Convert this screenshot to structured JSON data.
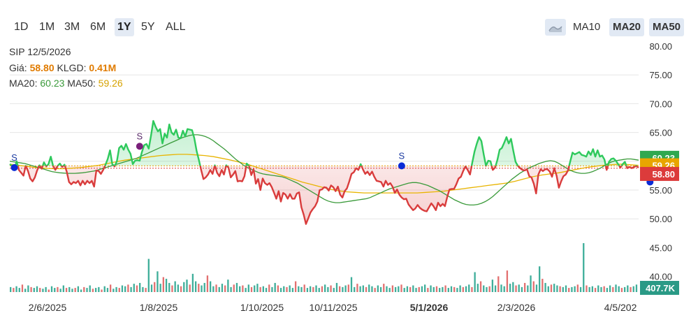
{
  "toolbar": {
    "ranges": [
      "1D",
      "1M",
      "3M",
      "6M",
      "1Y",
      "5Y",
      "ALL"
    ],
    "active_range": "1Y",
    "chart_type_icon": "area-chart-icon",
    "ma_buttons": [
      "MA10",
      "MA20",
      "MA50"
    ],
    "active_ma": [
      "MA20",
      "MA50"
    ]
  },
  "info": {
    "symbol_date": "SIP 12/5/2026",
    "price_label": "Giá:",
    "price_value": "58.80",
    "volume_label": "KLGD:",
    "volume_value": "0.41M",
    "ma20_label": "MA20:",
    "ma20_value": "60.23",
    "ma50_label": "MA50:",
    "ma50_value": "59.26"
  },
  "colors": {
    "up": "#2ec95c",
    "down": "#d93c3c",
    "ma20": "#3a9a3a",
    "ma50": "#e8b400",
    "signal": "#0a2bd6",
    "signal_alt": "#7a1f7a",
    "vol_teal": "#2aa58f",
    "vol_red": "#e06060"
  },
  "chart_data": {
    "type": "line",
    "title": "",
    "x_tick_labels": [
      "2/6/2025",
      "1/8/2025",
      "1/10/2025",
      "10/11/2025",
      "5/1/2026",
      "2/3/2026",
      "4/5/202"
    ],
    "bold_x_tick": "5/1/2026",
    "y_tick_labels": [
      "80.00",
      "75.00",
      "70.00",
      "65.00",
      "60.00",
      "55.00",
      "50.00",
      "45.00",
      "40.00"
    ],
    "ylim": [
      38,
      81
    ],
    "reference_price": 59.2,
    "last_labels": {
      "ma20": "60.23",
      "ma50": "59.26",
      "price": "58.80",
      "volume": "407.7K"
    },
    "price": [
      59.5,
      59.2,
      58.6,
      60.0,
      58.5,
      58.0,
      57.5,
      59.2,
      58.3,
      57.0,
      56.5,
      57.2,
      58.4,
      59.3,
      58.7,
      59.8,
      59.1,
      59.5,
      60.8,
      59.2,
      58.5,
      59.2,
      59.6,
      59.0,
      59.4,
      58.2,
      56.4,
      56.0,
      56.4,
      56.2,
      56.6,
      55.8,
      56.6,
      56.0,
      56.6,
      56.2,
      56.6,
      55.6,
      58.4,
      58.3,
      57.8,
      58.5,
      59.4,
      60.4,
      61.9,
      59.5,
      59.1,
      60.0,
      62.3,
      62.7,
      62.0,
      63.0,
      62.0,
      61.3,
      59.5,
      60.1,
      60.2,
      60.1,
      61.6,
      62.8,
      63.0,
      62.2,
      64.5,
      67.0,
      66.0,
      65.2,
      65.6,
      63.1,
      64.8,
      64.1,
      66.4,
      65.0,
      64.6,
      65.5,
      64.1,
      64.0,
      65.3,
      64.3,
      65.6,
      65.5,
      65.4,
      64.0,
      61.8,
      60.2,
      58.5,
      56.9,
      57.2,
      57.7,
      58.5,
      57.8,
      59.3,
      58.0,
      57.4,
      58.5,
      57.7,
      59.3,
      58.9,
      57.2,
      57.7,
      58.3,
      56.5,
      56.6,
      56.5,
      57.4,
      59.6,
      59.2,
      57.6,
      58.6,
      56.1,
      56.9,
      55.0,
      57.0,
      56.2,
      55.9,
      56.2,
      55.5,
      54.5,
      53.5,
      54.8,
      53.0,
      54.5,
      54.2,
      53.5,
      54.3,
      53.5,
      53.5,
      54.4,
      54.6,
      52.0,
      50.7,
      49.1,
      50.1,
      51.1,
      51.7,
      52.2,
      53.0,
      55.0,
      55.1,
      55.5,
      55.4,
      54.9,
      55.8,
      55.5,
      54.8,
      55.6,
      54.2,
      53.7,
      54.8,
      55.3,
      56.5,
      57.8,
      58.1,
      58.8,
      58.5,
      59.5,
      58.6,
      57.8,
      58.2,
      57.6,
      58.2,
      57.3,
      56.6,
      56.5,
      56.4,
      55.6,
      56.6,
      55.9,
      56.2,
      55.6,
      54.5,
      55.1,
      54.2,
      53.7,
      53.4,
      53.5,
      52.5,
      52.0,
      51.5,
      51.8,
      52.4,
      51.9,
      51.6,
      51.4,
      51.3,
      52.0,
      52.7,
      52.2,
      51.5,
      52.8,
      52.2,
      52.6,
      52.2,
      53.8,
      55.1,
      55.2,
      55.2,
      56.0,
      57.0,
      57.3,
      58.3,
      59.1,
      58.5,
      57.7,
      59.8,
      61.7,
      63.1,
      64.2,
      63.5,
      61.2,
      59.2,
      60.1,
      60.0,
      58.5,
      58.9,
      60.2,
      62.0,
      62.3,
      63.2,
      64.2,
      63.1,
      63.9,
      61.8,
      59.9,
      59.2,
      58.8,
      58.5,
      58.4,
      58.6,
      57.4,
      57.2,
      56.1,
      54.4,
      57.7,
      58.6,
      58.3,
      58.6,
      58.6,
      58.2,
      57.3,
      58.8,
      57.5,
      55.4,
      56.5,
      57.4,
      57.7,
      58.4,
      60.0,
      61.5,
      61.2,
      61.4,
      61.6,
      61.1,
      61.0,
      60.8,
      61.7,
      61.1,
      62.1,
      60.8,
      61.9,
      60.8,
      61.0,
      60.3,
      58.5,
      59.9,
      60.4,
      60.5,
      60.1,
      59.5,
      58.9,
      59.5,
      59.9,
      58.8,
      59.0,
      58.8,
      59.0,
      59.2,
      58.9
    ],
    "ma20": [
      60.0,
      59.9,
      59.8,
      59.7,
      59.6,
      59.4,
      59.2,
      59.0,
      58.8,
      58.6,
      58.4,
      58.2,
      58.1,
      58.0,
      57.95,
      57.9,
      57.9,
      57.9,
      57.95,
      58.0,
      58.1,
      58.2,
      58.3,
      58.5,
      58.7,
      58.9,
      59.1,
      59.3,
      59.5,
      59.7,
      59.9,
      60.1,
      60.3,
      60.5,
      60.8,
      61.1,
      61.4,
      61.7,
      62.0,
      62.3,
      62.6,
      62.9,
      63.2,
      63.5,
      63.8,
      64.1,
      64.3,
      64.5,
      64.6,
      64.6,
      64.5,
      64.3,
      64.0,
      63.6,
      63.1,
      62.6,
      62.1,
      61.5,
      60.9,
      60.3,
      59.8,
      59.3,
      58.9,
      58.6,
      58.3,
      58.0,
      57.8,
      57.7,
      57.6,
      57.5,
      57.4,
      57.3,
      57.1,
      56.8,
      56.5,
      56.2,
      55.8,
      55.4,
      55.0,
      54.6,
      54.2,
      53.8,
      53.4,
      53.1,
      52.9,
      52.8,
      52.8,
      52.9,
      53.0,
      53.1,
      53.2,
      53.3,
      53.4,
      53.5,
      53.7,
      54.0,
      54.3,
      54.6,
      54.9,
      55.2,
      55.4,
      55.6,
      55.8,
      56.0,
      56.2,
      56.3,
      56.3,
      56.2,
      56.0,
      55.8,
      55.5,
      55.2,
      54.9,
      54.5,
      54.1,
      53.7,
      53.3,
      53.0,
      52.7,
      52.5,
      52.4,
      52.4,
      52.5,
      52.7,
      53.0,
      53.4,
      53.9,
      54.5,
      55.1,
      55.7,
      56.3,
      56.9,
      57.4,
      57.9,
      58.3,
      58.7,
      59.0,
      59.3,
      59.6,
      59.8,
      60.0,
      60.1,
      60.0,
      59.7,
      59.3,
      58.9,
      58.5,
      58.2,
      58.0,
      57.9,
      57.9,
      58.0,
      58.2,
      58.5,
      58.8,
      59.2,
      59.6,
      59.9,
      60.1,
      60.2,
      60.3,
      60.4,
      60.4,
      60.3,
      60.2
    ],
    "ma50": [
      59.5,
      59.3,
      59.1,
      58.9,
      58.8,
      58.7,
      58.7,
      58.8,
      58.9,
      59.1,
      59.3,
      59.6,
      59.9,
      60.2,
      60.4,
      60.6,
      60.8,
      61.0,
      61.1,
      61.2,
      61.2,
      61.1,
      61.0,
      60.8,
      60.5,
      60.2,
      59.8,
      59.4,
      58.9,
      58.4,
      57.9,
      57.4,
      56.9,
      56.4,
      56.0,
      55.6,
      55.2,
      54.9,
      54.7,
      54.6,
      54.5,
      54.5,
      54.5,
      54.5,
      54.5,
      54.5,
      54.5,
      54.6,
      54.7,
      54.8,
      55.0,
      55.2,
      55.4,
      55.6,
      55.8,
      56.0,
      56.2,
      56.5,
      56.9,
      57.3,
      57.6,
      57.8,
      58.0,
      58.3,
      58.6,
      58.9,
      59.1,
      59.3,
      59.4,
      59.5,
      59.4,
      59.3
    ],
    "volume": [
      0.6,
      0.5,
      0.7,
      0.5,
      0.9,
      0.4,
      0.8,
      0.6,
      0.5,
      0.7,
      0.5,
      0.4,
      0.6,
      0.3,
      0.7,
      0.5,
      0.6,
      0.4,
      0.8,
      0.5,
      0.6,
      0.4,
      0.5,
      0.7,
      0.3,
      0.6,
      0.5,
      0.8,
      0.4,
      0.5,
      0.6,
      0.3,
      0.7,
      0.5,
      0.9,
      0.4,
      0.6,
      0.5,
      0.8,
      0.7,
      0.9,
      0.6,
      1.0,
      0.8,
      1.1,
      0.6,
      0.5,
      4.0,
      0.9,
      1.2,
      2.5,
      1.0,
      1.8,
      1.6,
      1.1,
      0.8,
      1.3,
      0.9,
      0.7,
      1.2,
      1.5,
      0.9,
      2.2,
      1.3,
      1.0,
      0.8,
      1.1,
      2.0,
      1.3,
      0.7,
      0.9,
      0.6,
      1.0,
      0.8,
      1.5,
      0.6,
      0.9,
      1.1,
      0.7,
      0.8,
      0.5,
      0.9,
      0.6,
      0.8,
      1.0,
      0.6,
      0.7,
      0.5,
      0.9,
      0.6,
      1.1,
      0.8,
      0.5,
      0.7,
      0.6,
      0.8,
      0.5,
      1.3,
      0.7,
      0.6,
      0.9,
      0.5,
      0.7,
      0.6,
      0.8,
      0.5,
      0.7,
      0.9,
      0.6,
      0.8,
      0.5,
      1.1,
      0.7,
      0.6,
      0.8,
      0.9,
      1.8,
      0.6,
      1.0,
      0.7,
      0.8,
      0.6,
      0.9,
      0.7,
      0.5,
      0.8,
      0.6,
      1.0,
      0.7,
      0.5,
      0.8,
      0.6,
      0.7,
      0.9,
      0.5,
      0.7,
      0.6,
      0.8,
      0.5,
      0.6,
      0.7,
      0.9,
      0.5,
      0.8,
      0.6,
      0.7,
      0.5,
      0.6,
      0.8,
      0.5,
      0.7,
      0.6,
      0.5,
      0.8,
      0.6,
      0.7,
      0.9,
      0.6,
      2.4,
      1.0,
      1.3,
      0.8,
      0.6,
      0.7,
      1.5,
      0.8,
      1.9,
      0.9,
      0.7,
      2.6,
      1.0,
      1.2,
      0.8,
      0.9,
      0.6,
      1.1,
      0.8,
      2.0,
      1.3,
      0.9,
      3.1,
      1.6,
      1.1,
      0.7,
      0.9,
      1.0,
      0.8,
      0.7,
      0.6,
      0.8,
      0.5,
      0.6,
      0.7,
      0.9,
      0.6,
      5.9,
      0.8,
      0.6,
      0.7,
      0.5,
      0.8,
      0.6,
      0.7,
      0.5,
      0.8,
      0.6,
      0.9,
      0.7,
      0.5,
      0.6,
      0.8,
      0.6,
      0.7,
      0.9
    ],
    "signals": [
      {
        "label": "S",
        "index": 2,
        "price": 58.9,
        "color": "signal"
      },
      {
        "label": "S",
        "index": 57,
        "price": 62.6,
        "color": "signal_alt"
      },
      {
        "label": "S",
        "index": 172,
        "price": 59.2,
        "color": "signal"
      },
      {
        "label": "S",
        "index": 281,
        "price": 56.4,
        "color": "signal"
      }
    ]
  }
}
